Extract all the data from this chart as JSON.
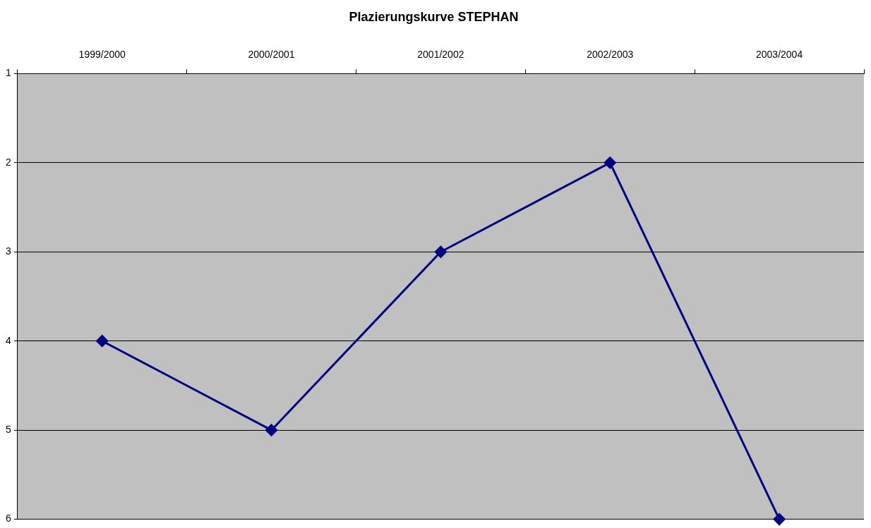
{
  "chart_data": {
    "type": "line",
    "title": "Plazierungskurve STEPHAN",
    "categories": [
      "1999/2000",
      "2000/2001",
      "2001/2002",
      "2002/2003",
      "2003/2004"
    ],
    "series": [
      {
        "color": "#000080",
        "values": [
          4,
          5,
          3,
          2,
          6
        ]
      }
    ],
    "ylim": [
      6,
      1
    ],
    "yticks": [
      1,
      2,
      3,
      4,
      5,
      6
    ],
    "grid": "y",
    "legend": false,
    "marker": "diamond",
    "line_style": "solid"
  }
}
